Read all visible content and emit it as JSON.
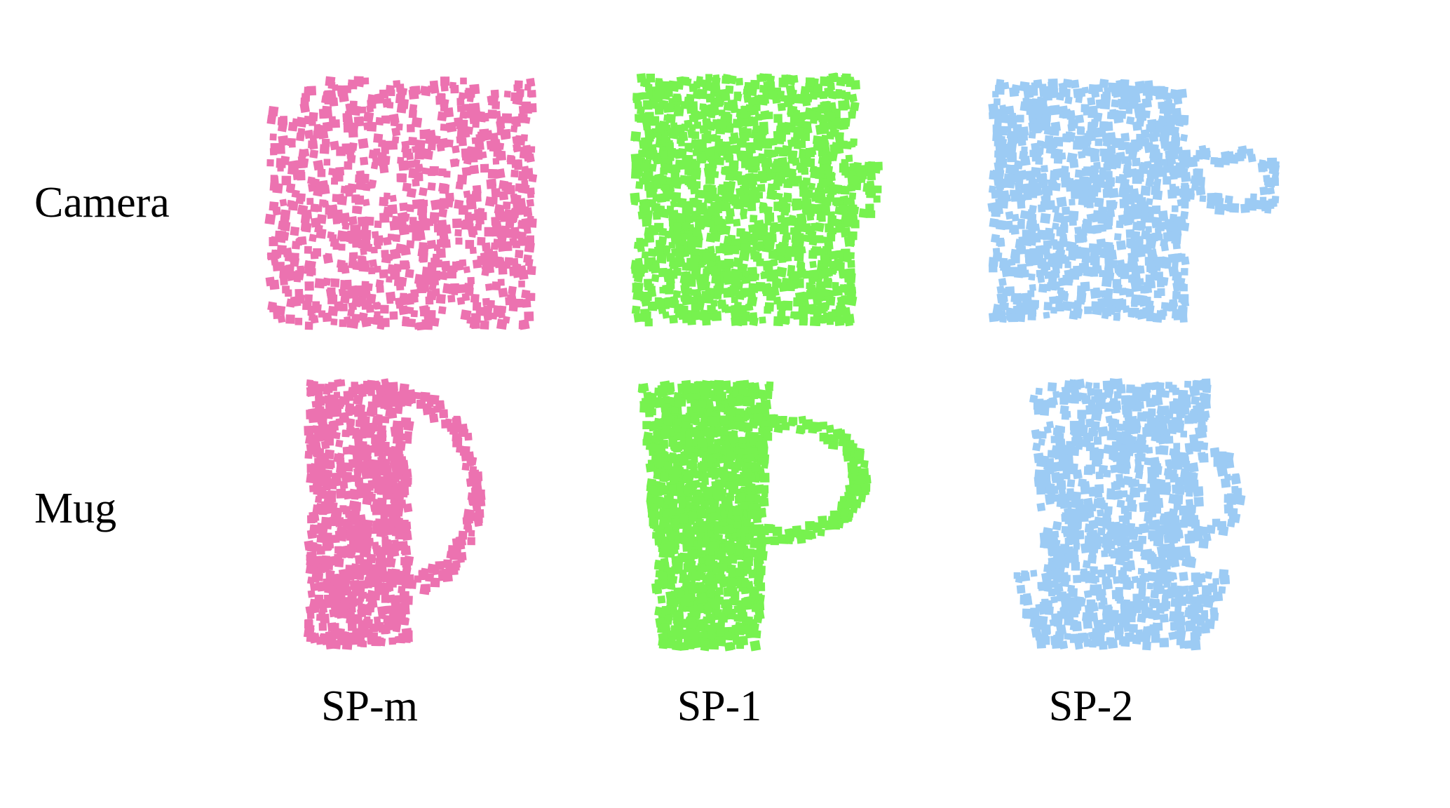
{
  "rows": [
    {
      "label": "Camera",
      "shape": "camera"
    },
    {
      "label": "Mug",
      "shape": "mug"
    }
  ],
  "columns": [
    {
      "label": "SP-m",
      "color": "#ec72b0",
      "style": "sparse"
    },
    {
      "label": "SP-1",
      "color": "#77f24f",
      "style": "dense"
    },
    {
      "label": "SP-2",
      "color": "#9ccbf4",
      "style": "with-handle"
    }
  ],
  "point_cloud_icon": "square-point"
}
